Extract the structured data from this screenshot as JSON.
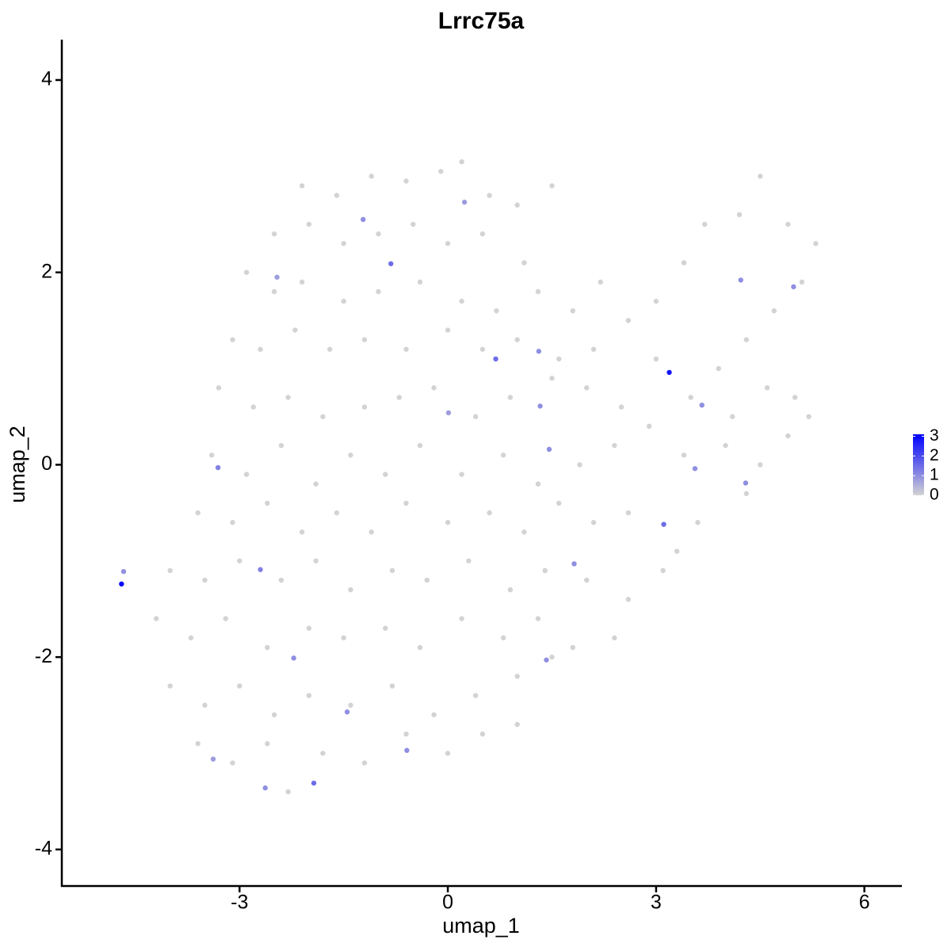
{
  "chart_data": {
    "type": "scatter",
    "title": "Lrrc75a",
    "x_label": "umap_1",
    "y_label": "umap_2",
    "xlim": [
      -5.56,
      6.54
    ],
    "ylim": [
      -4.38,
      4.42
    ],
    "xticks": [
      -3,
      0,
      3,
      6
    ],
    "yticks": [
      -4,
      -2,
      0,
      2,
      4
    ],
    "low_color": "#D3D3D3",
    "high_color": "#0000FF",
    "color_lim": [
      0,
      3.1
    ],
    "colorbar_ticks": [
      0,
      1,
      2,
      3
    ],
    "x": [
      -2.1,
      -1.6,
      -1.1,
      -0.6,
      -0.1,
      0.2,
      0.6,
      1.0,
      1.5,
      -2.5,
      -2.0,
      -1.5,
      -1.0,
      -0.5,
      0,
      0.5,
      1.1,
      -2.9,
      -2.5,
      -2.1,
      -1.5,
      -1.0,
      -0.4,
      0.2,
      0.7,
      1.3,
      1.8,
      2.2,
      -3.1,
      -2.7,
      -2.2,
      -1.7,
      -1.2,
      -0.6,
      0,
      0.5,
      1.0,
      1.6,
      2.1,
      2.6,
      3.0,
      3.4,
      3.7,
      4.2,
      4.5,
      4.9,
      5.3,
      5.1,
      4.7,
      4.3,
      3.9,
      -3.3,
      -2.8,
      -2.3,
      -1.8,
      -1.2,
      -0.7,
      -0.2,
      0.4,
      0.9,
      1.5,
      2.0,
      2.5,
      3.0,
      3.5,
      4.1,
      4.6,
      5.0,
      5.2,
      -3.4,
      -2.9,
      -2.4,
      -1.9,
      -1.4,
      -0.9,
      -0.4,
      0.2,
      0.8,
      1.3,
      1.9,
      2.4,
      2.9,
      3.4,
      4.0,
      4.5,
      4.9,
      4.3,
      -3.6,
      -3.1,
      -2.6,
      -2.1,
      -1.6,
      -1.1,
      -0.6,
      0,
      0.6,
      1.1,
      1.6,
      2.1,
      2.6,
      3.3,
      3.6,
      -4.0,
      -3.5,
      -3.0,
      -2.4,
      -1.9,
      -1.4,
      -0.8,
      -0.3,
      0.3,
      0.9,
      1.4,
      2.0,
      2.6,
      3.1,
      -4.2,
      -3.7,
      -3.2,
      -2.6,
      -2.0,
      -1.5,
      -0.9,
      -0.4,
      0.2,
      0.8,
      1.3,
      1.8,
      2.4,
      -4.0,
      -3.5,
      -3.0,
      -2.5,
      -2.0,
      -1.4,
      -0.8,
      -0.2,
      0.4,
      1.0,
      1.5,
      -3.6,
      -3.1,
      -2.6,
      -2.3,
      -1.8,
      -1.2,
      -0.6,
      0,
      0.5,
      1.0,
      -4.7,
      -4.67,
      3.19,
      -0.82,
      0.69,
      3.11,
      -1.93,
      -3.31,
      -2.7,
      -2.22,
      1.33,
      1.31,
      1.46,
      1.82,
      -1.22,
      4.98,
      4.22,
      3.66,
      3.56,
      4.29,
      -1.45,
      -2.63,
      1.42,
      -0.59,
      0.01,
      0.24,
      -2.46,
      -3.38
    ],
    "values": [
      2.9,
      2.8,
      3.0,
      2.95,
      3.05,
      3.15,
      2.8,
      2.7,
      2.9,
      2.4,
      2.5,
      2.3,
      2.4,
      2.5,
      2.3,
      2.4,
      2.1,
      2.0,
      1.8,
      1.9,
      1.7,
      1.8,
      1.9,
      1.7,
      1.6,
      1.8,
      1.6,
      1.9,
      1.3,
      1.2,
      1.4,
      1.2,
      1.3,
      1.2,
      1.4,
      1.2,
      1.3,
      1.1,
      1.2,
      1.5,
      1.7,
      2.1,
      2.5,
      2.6,
      3.0,
      2.5,
      2.3,
      1.9,
      1.6,
      1.3,
      1.0,
      0.8,
      0.6,
      0.7,
      0.5,
      0.6,
      0.7,
      0.8,
      0.5,
      0.7,
      0.9,
      0.8,
      0.6,
      1.1,
      0.7,
      0.5,
      0.8,
      0.7,
      0.5,
      0.1,
      -0.1,
      0.2,
      -0.2,
      0.1,
      -0.1,
      0.2,
      -0.1,
      0.1,
      -0.2,
      0.0,
      0.2,
      0.4,
      0.1,
      0.2,
      0.0,
      0.3,
      -0.3,
      -0.5,
      -0.6,
      -0.4,
      -0.7,
      -0.5,
      -0.7,
      -0.4,
      -0.6,
      -0.5,
      -0.7,
      -0.4,
      -0.6,
      -0.5,
      -0.9,
      -0.6,
      -1.1,
      -1.2,
      -1.0,
      -1.2,
      -1.0,
      -1.3,
      -1.1,
      -1.2,
      -1.0,
      -1.3,
      -1.1,
      -1.2,
      -1.4,
      -1.1,
      -1.6,
      -1.8,
      -1.6,
      -1.9,
      -1.7,
      -1.8,
      -1.7,
      -1.9,
      -1.6,
      -1.8,
      -1.6,
      -1.9,
      -1.8,
      -2.3,
      -2.5,
      -2.3,
      -2.6,
      -2.4,
      -2.5,
      -2.3,
      -2.6,
      -2.4,
      -2.2,
      -2.0,
      -2.9,
      -3.1,
      -2.9,
      -3.4,
      -3.0,
      -3.1,
      -2.8,
      -3.0,
      -2.8,
      -2.7,
      -1.24,
      -1.11,
      0.96,
      2.09,
      1.1,
      -0.62,
      -3.31,
      -0.03,
      -1.09,
      -2.01,
      0.61,
      1.18,
      0.16,
      -1.03,
      2.55,
      1.85,
      1.92,
      0.62,
      -0.04,
      -0.19,
      -2.57,
      -3.36,
      -2.03,
      -2.97,
      0.54,
      2.73,
      1.95,
      -3.06
    ],
    "expression": [
      0,
      0,
      0,
      0,
      0,
      0,
      0,
      0,
      0,
      0,
      0,
      0,
      0,
      0,
      0,
      0,
      0,
      0,
      0,
      0,
      0,
      0,
      0,
      0,
      0,
      0,
      0,
      0,
      0,
      0,
      0,
      0,
      0,
      0,
      0,
      0,
      0,
      0,
      0,
      0,
      0,
      0,
      0,
      0,
      0,
      0,
      0,
      0,
      0,
      0,
      0,
      0,
      0,
      0,
      0,
      0,
      0,
      0,
      0,
      0,
      0,
      0,
      0,
      0,
      0,
      0,
      0,
      0,
      0,
      0,
      0,
      0,
      0,
      0,
      0,
      0,
      0,
      0,
      0,
      0,
      0,
      0,
      0,
      0,
      0,
      0,
      0,
      0,
      0,
      0,
      0,
      0,
      0,
      0,
      0,
      0,
      0,
      0,
      0,
      0,
      0,
      0,
      0,
      0,
      0,
      0,
      0,
      0,
      0,
      0,
      0,
      0,
      0,
      0,
      0,
      0,
      0,
      0,
      0,
      0,
      0,
      0,
      0,
      0,
      0,
      0,
      0,
      0,
      0,
      0,
      0,
      0,
      0,
      0,
      0,
      0,
      0,
      0,
      0,
      0,
      0,
      0,
      0,
      0,
      0,
      0,
      0,
      0,
      0,
      0,
      3,
      1,
      2.8,
      1.5,
      1.5,
      1.5,
      1.5,
      1.2,
      1.2,
      1,
      1,
      1,
      1,
      1,
      1,
      1,
      1,
      1,
      1,
      1,
      1,
      1,
      1,
      1,
      0.8,
      0.8,
      0.8,
      0.8
    ]
  }
}
